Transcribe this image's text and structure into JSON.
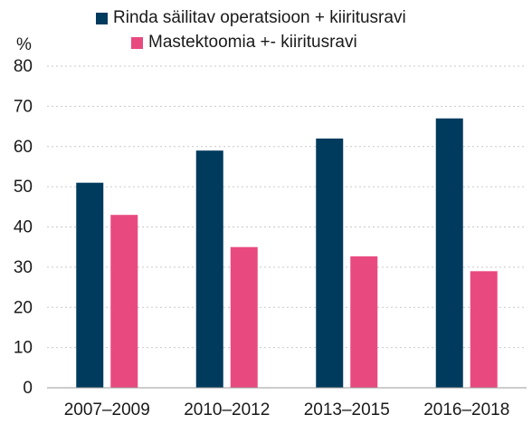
{
  "chart_data": {
    "type": "bar",
    "title": "",
    "xlabel": "",
    "ylabel": "%",
    "ylim": [
      0,
      80
    ],
    "yticks": [
      0,
      10,
      20,
      30,
      40,
      50,
      60,
      70,
      80
    ],
    "grid": true,
    "legend_position": "top",
    "categories": [
      "2007–2009",
      "2010–2012",
      "2013–2015",
      "2016–2018"
    ],
    "series": [
      {
        "name": "Rinda säilitav operatsioon + kiiritusravi",
        "color": "#003a5d",
        "values": [
          51,
          59,
          62,
          67
        ]
      },
      {
        "name": "Mastektoomia +- kiiritusravi",
        "color": "#e84a7f",
        "values": [
          43,
          35,
          32.7,
          29
        ]
      }
    ]
  }
}
